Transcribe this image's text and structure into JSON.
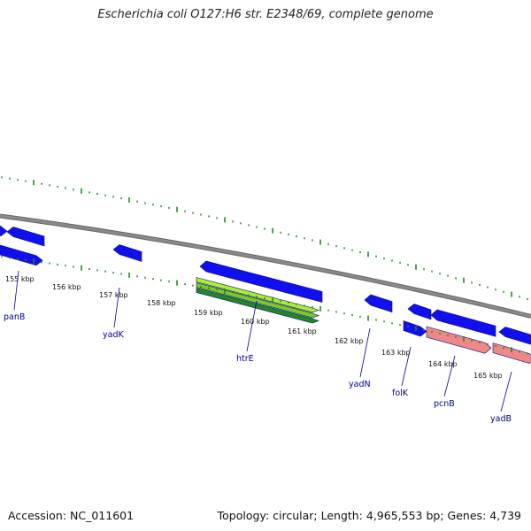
{
  "title": "Escherichia coli O127:H6 str. E2348/69, complete genome",
  "footer": {
    "accession": "Accession: NC_011601",
    "summary": "Topology: circular; Length: 4,965,553 bp; Genes: 4,739"
  },
  "colors": {
    "backbone": "#8a8a8a",
    "tick": "#1e8a1e",
    "gene_forward": "#1010ee",
    "gene_reverse": "#1010ee",
    "rna_light": "#aaee33",
    "rna_dark": "#228822",
    "pseudo": "#ee8888",
    "label": "#00008b",
    "scale_text": "#111111"
  },
  "scale": {
    "unit": "kbp",
    "labels": [
      "155 kbp",
      "156 kbp",
      "157 kbp",
      "158 kbp",
      "159 kbp",
      "160 kbp",
      "161 kbp",
      "162 kbp",
      "163 kbp",
      "164 kbp",
      "165 kbp"
    ]
  },
  "genes": [
    {
      "name": "panB"
    },
    {
      "name": "yadK"
    },
    {
      "name": "htrE"
    },
    {
      "name": "yadN"
    },
    {
      "name": "folK"
    },
    {
      "name": "pcnB"
    },
    {
      "name": "yadB"
    }
  ]
}
